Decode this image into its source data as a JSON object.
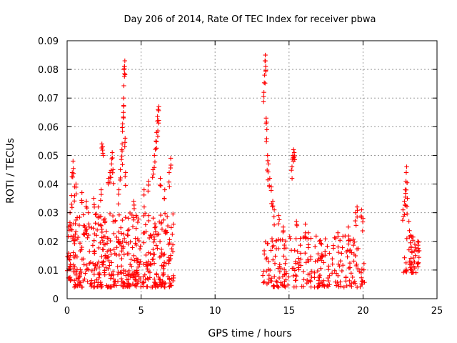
{
  "chart_data": {
    "type": "scatter",
    "title": "Day 206 of 2014, Rate Of TEC Index for receiver pbwa",
    "xlabel": "GPS time / hours",
    "ylabel": "ROTI / TECUs",
    "xlim": [
      0,
      25
    ],
    "ylim": [
      0,
      0.09
    ],
    "xticks": [
      0,
      5,
      10,
      15,
      20,
      25
    ],
    "xtick_labels": [
      "0",
      "5",
      "10",
      "15",
      "20",
      "25"
    ],
    "yticks": [
      0,
      0.01,
      0.02,
      0.03,
      0.04,
      0.05,
      0.06,
      0.07,
      0.08,
      0.09
    ],
    "ytick_labels": [
      "0",
      "0.01",
      "0.02",
      "0.03",
      "0.04",
      "0.05",
      "0.06",
      "0.07",
      "0.08",
      "0.09"
    ],
    "grid": true,
    "marker": "plus",
    "color": "#ff0000",
    "series": [
      {
        "name": "ROTI",
        "clusters": [
          {
            "x_range": [
              0.0,
              7.2
            ],
            "y_range": [
              0.004,
              0.03
            ],
            "count": 520
          },
          {
            "x_range": [
              13.2,
              20.1
            ],
            "y_range": [
              0.004,
              0.022
            ],
            "count": 260
          },
          {
            "x_range": [
              22.7,
              23.8
            ],
            "y_range": [
              0.009,
              0.022
            ],
            "count": 45
          }
        ],
        "peaks": [
          {
            "x": 0.1,
            "y": 0.025
          },
          {
            "x": 0.2,
            "y": 0.03
          },
          {
            "x": 0.3,
            "y": 0.036
          },
          {
            "x": 0.35,
            "y": 0.044
          },
          {
            "x": 0.4,
            "y": 0.048
          },
          {
            "x": 0.5,
            "y": 0.039
          },
          {
            "x": 0.6,
            "y": 0.04
          },
          {
            "x": 1.0,
            "y": 0.037
          },
          {
            "x": 1.3,
            "y": 0.034
          },
          {
            "x": 1.8,
            "y": 0.035
          },
          {
            "x": 2.1,
            "y": 0.032
          },
          {
            "x": 2.3,
            "y": 0.038
          },
          {
            "x": 2.35,
            "y": 0.054
          },
          {
            "x": 2.4,
            "y": 0.053
          },
          {
            "x": 2.8,
            "y": 0.042
          },
          {
            "x": 2.9,
            "y": 0.044
          },
          {
            "x": 3.0,
            "y": 0.047
          },
          {
            "x": 3.05,
            "y": 0.051
          },
          {
            "x": 3.1,
            "y": 0.045
          },
          {
            "x": 3.5,
            "y": 0.038
          },
          {
            "x": 3.6,
            "y": 0.045
          },
          {
            "x": 3.7,
            "y": 0.052
          },
          {
            "x": 3.72,
            "y": 0.054
          },
          {
            "x": 3.75,
            "y": 0.061
          },
          {
            "x": 3.8,
            "y": 0.065
          },
          {
            "x": 3.82,
            "y": 0.07
          },
          {
            "x": 3.85,
            "y": 0.08
          },
          {
            "x": 3.88,
            "y": 0.081
          },
          {
            "x": 3.9,
            "y": 0.083
          },
          {
            "x": 3.92,
            "y": 0.056
          },
          {
            "x": 3.95,
            "y": 0.044
          },
          {
            "x": 4.5,
            "y": 0.034
          },
          {
            "x": 5.2,
            "y": 0.038
          },
          {
            "x": 5.5,
            "y": 0.041
          },
          {
            "x": 5.8,
            "y": 0.045
          },
          {
            "x": 5.9,
            "y": 0.05
          },
          {
            "x": 6.0,
            "y": 0.055
          },
          {
            "x": 6.05,
            "y": 0.058
          },
          {
            "x": 6.1,
            "y": 0.062
          },
          {
            "x": 6.15,
            "y": 0.066
          },
          {
            "x": 6.2,
            "y": 0.067
          },
          {
            "x": 6.3,
            "y": 0.042
          },
          {
            "x": 6.6,
            "y": 0.038
          },
          {
            "x": 6.9,
            "y": 0.044
          },
          {
            "x": 7.0,
            "y": 0.049
          },
          {
            "x": 13.3,
            "y": 0.072
          },
          {
            "x": 13.35,
            "y": 0.078
          },
          {
            "x": 13.4,
            "y": 0.085
          },
          {
            "x": 13.42,
            "y": 0.081
          },
          {
            "x": 13.45,
            "y": 0.063
          },
          {
            "x": 13.5,
            "y": 0.059
          },
          {
            "x": 13.55,
            "y": 0.05
          },
          {
            "x": 13.6,
            "y": 0.047
          },
          {
            "x": 13.7,
            "y": 0.042
          },
          {
            "x": 13.8,
            "y": 0.039
          },
          {
            "x": 13.9,
            "y": 0.034
          },
          {
            "x": 14.0,
            "y": 0.031
          },
          {
            "x": 14.3,
            "y": 0.029
          },
          {
            "x": 14.6,
            "y": 0.025
          },
          {
            "x": 15.2,
            "y": 0.046
          },
          {
            "x": 15.25,
            "y": 0.05
          },
          {
            "x": 15.3,
            "y": 0.052
          },
          {
            "x": 15.35,
            "y": 0.051
          },
          {
            "x": 15.5,
            "y": 0.027
          },
          {
            "x": 16.1,
            "y": 0.026
          },
          {
            "x": 16.3,
            "y": 0.023
          },
          {
            "x": 17.2,
            "y": 0.019
          },
          {
            "x": 18.3,
            "y": 0.023
          },
          {
            "x": 19.0,
            "y": 0.025
          },
          {
            "x": 19.5,
            "y": 0.03
          },
          {
            "x": 19.6,
            "y": 0.032
          },
          {
            "x": 19.9,
            "y": 0.031
          },
          {
            "x": 20.0,
            "y": 0.028
          },
          {
            "x": 22.7,
            "y": 0.031
          },
          {
            "x": 22.8,
            "y": 0.034
          },
          {
            "x": 22.85,
            "y": 0.038
          },
          {
            "x": 22.9,
            "y": 0.041
          },
          {
            "x": 22.95,
            "y": 0.046
          },
          {
            "x": 23.0,
            "y": 0.035
          },
          {
            "x": 23.1,
            "y": 0.027
          },
          {
            "x": 23.2,
            "y": 0.022
          },
          {
            "x": 23.5,
            "y": 0.019
          },
          {
            "x": 23.7,
            "y": 0.02
          }
        ]
      }
    ]
  }
}
